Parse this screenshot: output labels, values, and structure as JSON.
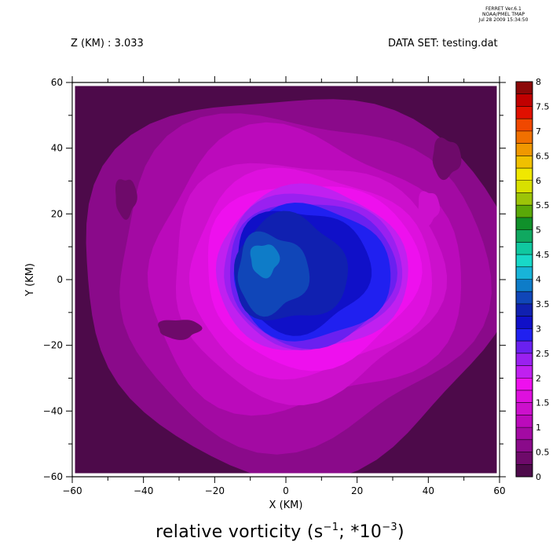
{
  "stamp": {
    "line1": "FERRET Ver.6.1",
    "line2": "NOAA/PMEL TMAP",
    "line3": "Jul 28 2009 15:34:50"
  },
  "header": {
    "z_label": "Z (KM) : 3.033",
    "dataset_label": "DATA SET: testing.dat"
  },
  "title": {
    "text_main": "relative vorticity (s",
    "sup1": "−1",
    "text_mid": "; *10",
    "sup2": "−3",
    "text_end": ")"
  },
  "chart_data": {
    "type": "heatmap",
    "title": "relative vorticity (s−1; *10−3)",
    "xlabel": "X (KM)",
    "ylabel": "Y (KM)",
    "xlim": [
      -60,
      60
    ],
    "ylim": [
      -60,
      60
    ],
    "xticks": [
      "−60",
      "−40",
      "−20",
      "0",
      "20",
      "40",
      "60"
    ],
    "yticks": [
      "−60",
      "−40",
      "−20",
      "0",
      "20",
      "40",
      "60"
    ],
    "colorbar": {
      "levels": [
        0,
        0.25,
        0.5,
        0.75,
        1,
        1.25,
        1.5,
        1.75,
        2,
        2.25,
        2.5,
        2.75,
        3,
        3.25,
        3.5,
        3.75,
        4,
        4.25,
        4.5,
        4.75,
        5,
        5.25,
        5.5,
        5.75,
        6,
        6.25,
        6.5,
        6.75,
        7,
        7.25,
        7.5,
        7.75,
        8
      ],
      "labels": [
        "0",
        "0.5",
        "1",
        "1.5",
        "2",
        "2.5",
        "3",
        "3.5",
        "4",
        "4.5",
        "5",
        "5.5",
        "6",
        "6.5",
        "7",
        "7.5",
        "8"
      ],
      "colors": [
        "#4d0a4a",
        "#6e0a6a",
        "#8a0a8a",
        "#a30aa3",
        "#bb0abb",
        "#cc10cc",
        "#de10de",
        "#ee10ee",
        "#c020f0",
        "#9a20f0",
        "#6a20f0",
        "#2020f0",
        "#1010c8",
        "#1020b0",
        "#1046b8",
        "#0e7cc8",
        "#18b4d8",
        "#18d8c8",
        "#10c8a0",
        "#10a860",
        "#10902a",
        "#5aa808",
        "#9cc408",
        "#d8e000",
        "#f0e800",
        "#f0c000",
        "#f09800",
        "#f07000",
        "#f04800",
        "#e01000",
        "#c00000",
        "#8c0808"
      ]
    },
    "field_description_values": {
      "background": 0.2,
      "outer_ring": 0.75,
      "mid_ring": 1.25,
      "inner_ring": 1.75,
      "eye_wall": 2.3,
      "core": 3.0,
      "center_max": 3.6
    }
  }
}
